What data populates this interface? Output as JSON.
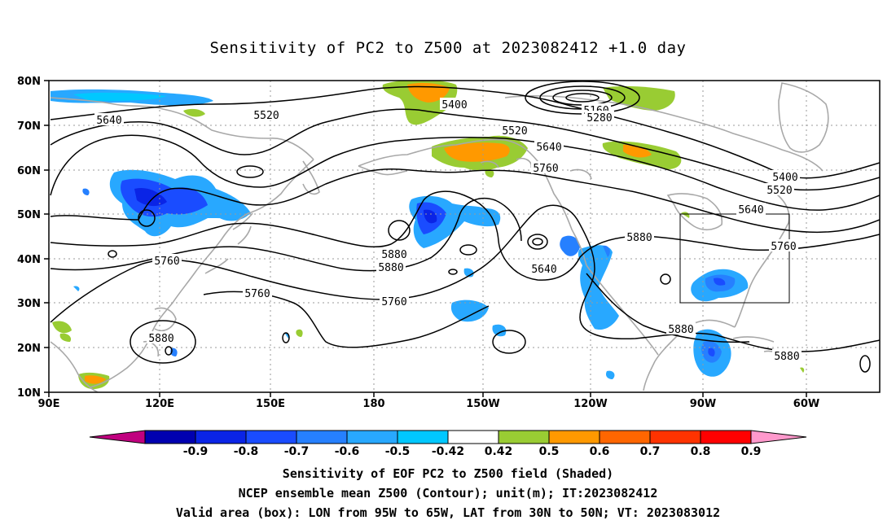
{
  "title": "Sensitivity of PC2 to Z500 at 2023082412 +1.0 day",
  "lat_labels": [
    "80N",
    "70N",
    "60N",
    "50N",
    "40N",
    "30N",
    "20N",
    "10N"
  ],
  "lon_labels": [
    "90E",
    "120E",
    "150E",
    "180",
    "150W",
    "120W",
    "90W",
    "60W"
  ],
  "contour_labels": [
    {
      "text": "5400"
    },
    {
      "text": "5160"
    },
    {
      "text": "5280"
    },
    {
      "text": "5640"
    },
    {
      "text": "5520"
    },
    {
      "text": "5520"
    },
    {
      "text": "5640"
    },
    {
      "text": "5760"
    },
    {
      "text": "5400"
    },
    {
      "text": "5520"
    },
    {
      "text": "5640"
    },
    {
      "text": "5760"
    },
    {
      "text": "5760"
    },
    {
      "text": "5880"
    },
    {
      "text": "5880"
    },
    {
      "text": "5640"
    },
    {
      "text": "5760"
    },
    {
      "text": "5760"
    },
    {
      "text": "5880"
    },
    {
      "text": "5880"
    },
    {
      "text": "5880"
    },
    {
      "text": "5880"
    }
  ],
  "colorbar": {
    "colors": [
      "#c0007f",
      "#0000b0",
      "#0a24e6",
      "#1a4cff",
      "#2680ff",
      "#28a8ff",
      "#00c8ff",
      "#ffffff",
      "#99cc33",
      "#ff9900",
      "#ff6600",
      "#ff3300",
      "#ff0000",
      "#ff99cc"
    ],
    "labels": [
      "-0.9",
      "-0.8",
      "-0.7",
      "-0.6",
      "-0.5",
      "-0.42",
      "0.42",
      "0.5",
      "0.6",
      "0.7",
      "0.8",
      "0.9"
    ]
  },
  "shading_colors": {
    "light_blue": "#00c8ff",
    "mid_blue": "#2680ff",
    "blue": "#1a4cff",
    "deep_blue": "#0a24e6",
    "green": "#99cc33",
    "orange": "#ff9900",
    "dark_orange": "#ff6600"
  },
  "valid_box": {
    "lon_west": "95W",
    "lon_east": "65W",
    "lat_south": "30N",
    "lat_north": "50N"
  },
  "captions": {
    "line1": "Sensitivity of EOF PC2 to Z500 field (Shaded)",
    "line2": "NCEP ensemble mean Z500 (Contour); unit(m); IT:2023082412",
    "line3": "Valid area (box): LON from 95W to 65W, LAT from 30N to 50N; VT: 2023083012"
  }
}
